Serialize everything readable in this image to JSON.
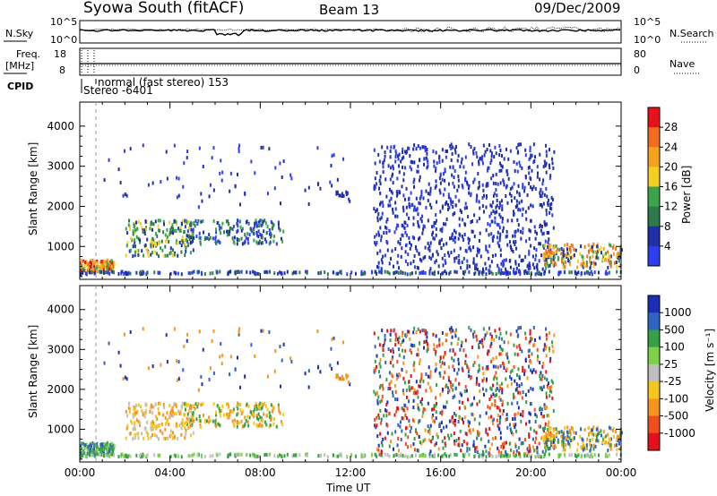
{
  "header": {
    "station": "Syowa South (fitACF)",
    "beam": "Beam 13",
    "date": "09/Dec/2009"
  },
  "sky_panel": {
    "left_label": "N.Sky",
    "right_label": "N.Search",
    "left_ticks": [
      "10^5",
      "10^0"
    ],
    "right_ticks": [
      "10^5",
      "10^0"
    ]
  },
  "freq_panel": {
    "left_label_1": "Freq.",
    "left_label_2": "[MHz]",
    "right_label": "Nave",
    "left_ticks": [
      "18",
      "8"
    ],
    "right_ticks": [
      "80",
      "0"
    ]
  },
  "cpid": {
    "label": "CPID",
    "mode_text": "normal (fast stereo) 153",
    "stereo_text": "Stereo -6401"
  },
  "chart_data": [
    {
      "type": "heatmap",
      "title": "",
      "xlabel": "",
      "ylabel": "Slant Range [km]",
      "x_tick_labels": [
        "00:00",
        "04:00",
        "08:00",
        "12:00",
        "16:00",
        "20:00",
        "00:00"
      ],
      "y_tick_labels": [
        "1000",
        "2000",
        "3000",
        "4000"
      ],
      "xlim_hours": [
        0,
        24
      ],
      "ylim_km": [
        180,
        4600
      ],
      "colorbar": {
        "label": "Power [dB]",
        "tick_labels": [
          "28",
          "24",
          "20",
          "16",
          "12",
          "8",
          "4"
        ],
        "colors": [
          "#e8101a",
          "#f36b1f",
          "#f7a21e",
          "#f5cf20",
          "#3ca34a",
          "#2f7a4c",
          "#1f2fa8",
          "#2c3ff0"
        ]
      }
    },
    {
      "type": "heatmap",
      "title": "",
      "xlabel": "Time UT",
      "ylabel": "Slant Range [km]",
      "x_tick_labels": [
        "00:00",
        "04:00",
        "08:00",
        "12:00",
        "16:00",
        "20:00",
        "00:00"
      ],
      "y_tick_labels": [
        "1000",
        "2000",
        "3000",
        "4000"
      ],
      "xlim_hours": [
        0,
        24
      ],
      "ylim_km": [
        180,
        4600
      ],
      "colorbar": {
        "label": "Velocity [m s⁻¹]",
        "tick_labels": [
          "1000",
          "500",
          "100",
          "25",
          "-25",
          "-100",
          "-500",
          "-1000"
        ],
        "colors": [
          "#1a2fb5",
          "#2f63c2",
          "#35a046",
          "#7ed04a",
          "#bfbfbf",
          "#f5c61e",
          "#f5951d",
          "#ef4f1c",
          "#e3111b"
        ]
      }
    }
  ]
}
